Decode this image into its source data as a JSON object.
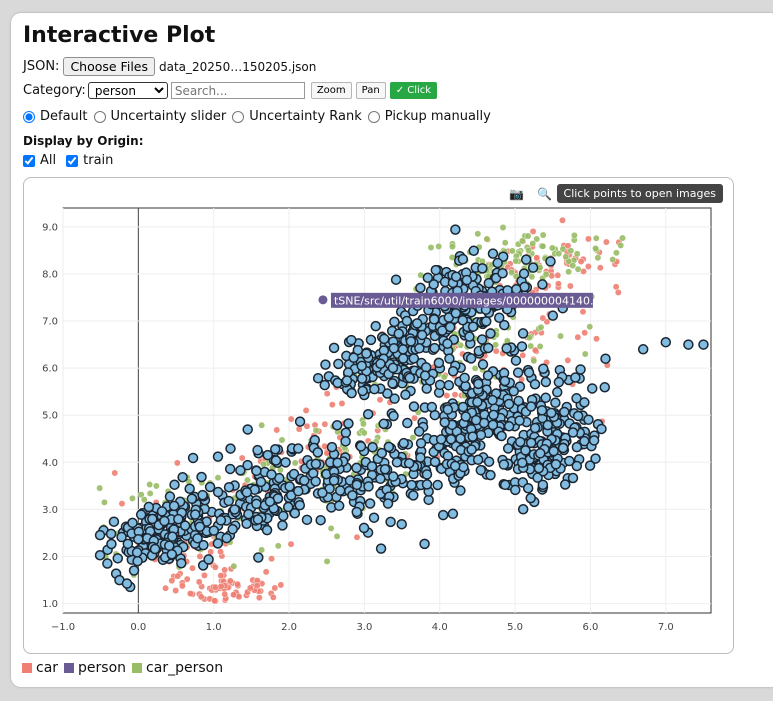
{
  "page": {
    "title": "Interactive Plot",
    "json_label": "JSON:",
    "choose_files_label": "Choose Files",
    "file_name": "data_20250…150205.json",
    "category_label": "Category:",
    "category_selected": "person",
    "search_placeholder": "Search...",
    "buttons": {
      "zoom": "Zoom",
      "pan": "Pan",
      "click": "✓ Click"
    },
    "modes": [
      "Default",
      "Uncertainty slider",
      "Uncertainty Rank",
      "Pickup manually"
    ],
    "selected_mode": "Default",
    "origin_title": "Display by Origin:",
    "origin_checks": [
      {
        "label": "All",
        "checked": true
      },
      {
        "label": "train",
        "checked": true
      }
    ]
  },
  "modebar": {
    "icons": [
      "camera-icon",
      "zoom-icon",
      "pan-icon"
    ],
    "tooltip": "Click points to open images"
  },
  "hover_label": "tSNE/src/util/train6000/images/000000004140.jpg",
  "colors": {
    "car": "#ef7f72",
    "person": "#6b5b95",
    "car_person": "#98bd66",
    "selected_fill": "#82bce1",
    "selected_stroke": "#1b2530",
    "primary": "#28a745"
  },
  "legend": [
    {
      "label": "car",
      "color": "#ef7f72"
    },
    {
      "label": "person",
      "color": "#6b5b95"
    },
    {
      "label": "car_person",
      "color": "#98bd66"
    }
  ],
  "chart_data": {
    "type": "scatter",
    "xlim": [
      -1.0,
      7.6
    ],
    "ylim": [
      0.8,
      9.4
    ],
    "x_ticks": [
      "−1.0",
      "0.0",
      "1.0",
      "2.0",
      "3.0",
      "4.0",
      "5.0",
      "6.0",
      "7.0"
    ],
    "y_ticks": [
      "1.0",
      "2.0",
      "3.0",
      "4.0",
      "5.0",
      "6.0",
      "7.0",
      "8.0",
      "9.0"
    ],
    "x_tick_values": [
      -1,
      0,
      1,
      2,
      3,
      4,
      5,
      6,
      7
    ],
    "y_tick_values": [
      1,
      2,
      3,
      4,
      5,
      6,
      7,
      8,
      9
    ],
    "grid": true,
    "hovered_point": [
      2.45,
      7.45
    ],
    "series": [
      {
        "name": "car",
        "color": "#ef7f72",
        "count": 320,
        "clusters": [
          [
            0.8,
            2.2,
            0.9,
            0.9,
            0
          ],
          [
            2.3,
            4.3,
            1.2,
            1.0,
            0.5
          ],
          [
            4.8,
            6.3,
            1.3,
            1.3,
            0.4
          ],
          [
            5.5,
            8.2,
            0.8,
            0.5,
            0.1
          ],
          [
            1.2,
            1.3,
            0.6,
            0.25,
            0
          ]
        ]
      },
      {
        "name": "car_person",
        "color": "#98bd66",
        "count": 420,
        "clusters": [
          [
            0.6,
            2.7,
            1.0,
            0.8,
            0.3
          ],
          [
            2.5,
            3.8,
            1.1,
            1.0,
            0.5
          ],
          [
            4.5,
            6.8,
            1.1,
            1.2,
            0.5
          ],
          [
            5.0,
            8.3,
            0.9,
            0.5,
            0.2
          ]
        ]
      },
      {
        "name": "person",
        "color": "#82bce1",
        "count": 1200,
        "clusters": [
          [
            0.3,
            2.5,
            0.6,
            0.6,
            0.3
          ],
          [
            1.8,
            3.4,
            0.9,
            0.8,
            0.4
          ],
          [
            3.6,
            3.9,
            1.0,
            0.9,
            0.4
          ],
          [
            4.6,
            5.2,
            0.7,
            0.9,
            0.3
          ],
          [
            3.4,
            6.2,
            0.7,
            0.6,
            0.2
          ],
          [
            4.4,
            7.4,
            0.7,
            0.8,
            0.2
          ],
          [
            5.5,
            4.4,
            0.5,
            0.8,
            0.5
          ]
        ],
        "line_points": [
          [
            5.8,
            5.8
          ],
          [
            6.2,
            6.2
          ],
          [
            6.7,
            6.4
          ],
          [
            7.0,
            6.55
          ],
          [
            7.3,
            6.5
          ],
          [
            7.5,
            6.5
          ]
        ]
      }
    ]
  }
}
